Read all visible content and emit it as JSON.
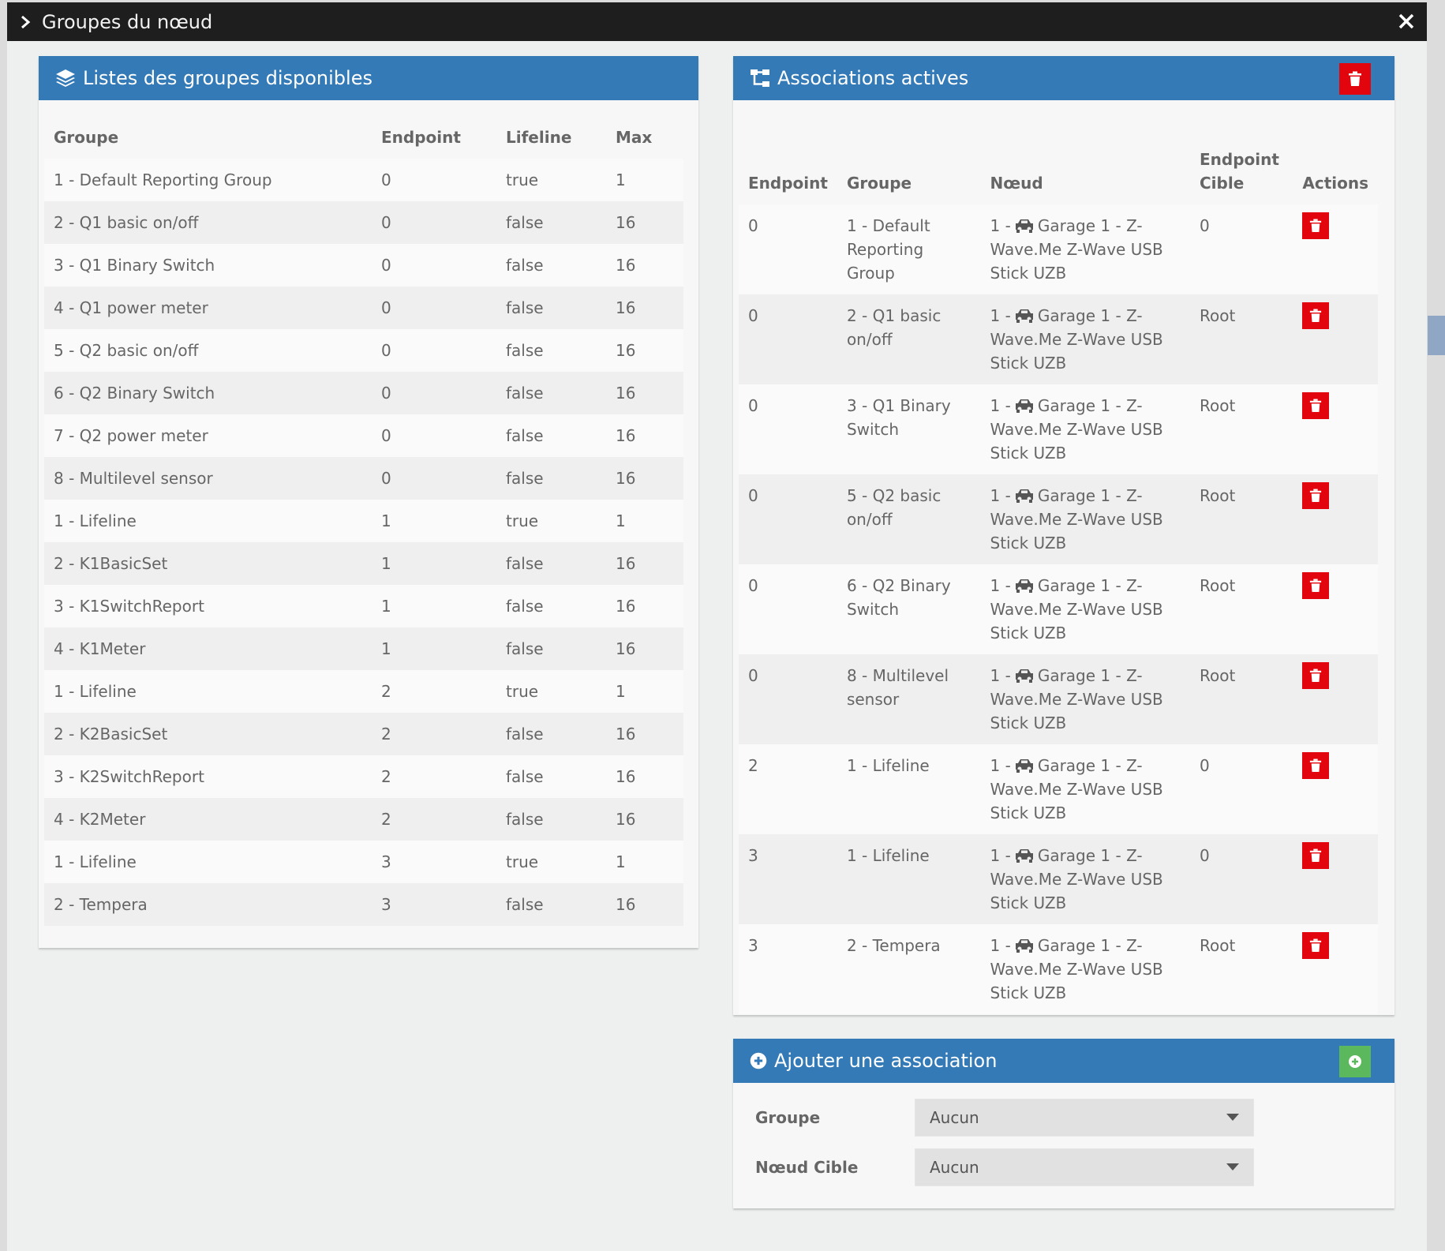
{
  "modal": {
    "title": "Groupes du nœud"
  },
  "groups_panel": {
    "title": "Listes des groupes disponibles",
    "columns": [
      "Groupe",
      "Endpoint",
      "Lifeline",
      "Max"
    ],
    "rows": [
      [
        "1 - Default Reporting Group",
        "0",
        "true",
        "1"
      ],
      [
        "2 - Q1 basic on/off",
        "0",
        "false",
        "16"
      ],
      [
        "3 - Q1 Binary Switch",
        "0",
        "false",
        "16"
      ],
      [
        "4 - Q1 power meter",
        "0",
        "false",
        "16"
      ],
      [
        "5 - Q2 basic on/off",
        "0",
        "false",
        "16"
      ],
      [
        "6 - Q2 Binary Switch",
        "0",
        "false",
        "16"
      ],
      [
        "7 - Q2 power meter",
        "0",
        "false",
        "16"
      ],
      [
        "8 - Multilevel sensor",
        "0",
        "false",
        "16"
      ],
      [
        "1 - Lifeline",
        "1",
        "true",
        "1"
      ],
      [
        "2 - K1BasicSet",
        "1",
        "false",
        "16"
      ],
      [
        "3 - K1SwitchReport",
        "1",
        "false",
        "16"
      ],
      [
        "4 - K1Meter",
        "1",
        "false",
        "16"
      ],
      [
        "1 - Lifeline",
        "2",
        "true",
        "1"
      ],
      [
        "2 - K2BasicSet",
        "2",
        "false",
        "16"
      ],
      [
        "3 - K2SwitchReport",
        "2",
        "false",
        "16"
      ],
      [
        "4 - K2Meter",
        "2",
        "false",
        "16"
      ],
      [
        "1 - Lifeline",
        "3",
        "true",
        "1"
      ],
      [
        "2 - Tempera",
        "3",
        "false",
        "16"
      ]
    ]
  },
  "associations_panel": {
    "title": "Associations actives",
    "columns": [
      "Endpoint",
      "Groupe",
      "Nœud",
      "Endpoint Cible",
      "Actions"
    ],
    "node_prefix": "1 -",
    "node_name": "Garage 1 - Z-Wave.Me Z-Wave USB Stick UZB",
    "rows": [
      {
        "endpoint": "0",
        "group": "1 - Default Reporting Group",
        "target": "0"
      },
      {
        "endpoint": "0",
        "group": "2 - Q1 basic on/off",
        "target": "Root"
      },
      {
        "endpoint": "0",
        "group": "3 - Q1 Binary Switch",
        "target": "Root"
      },
      {
        "endpoint": "0",
        "group": "5 - Q2 basic on/off",
        "target": "Root"
      },
      {
        "endpoint": "0",
        "group": "6 - Q2 Binary Switch",
        "target": "Root"
      },
      {
        "endpoint": "0",
        "group": "8 - Multilevel sensor",
        "target": "Root"
      },
      {
        "endpoint": "2",
        "group": "1 - Lifeline",
        "target": "0"
      },
      {
        "endpoint": "3",
        "group": "1 - Lifeline",
        "target": "0"
      },
      {
        "endpoint": "3",
        "group": "2 - Tempera",
        "target": "Root"
      }
    ]
  },
  "add_panel": {
    "title": "Ajouter une association",
    "group_label": "Groupe",
    "group_value": "Aucun",
    "target_label": "Nœud Cible",
    "target_value": "Aucun"
  },
  "colors": {
    "header_bg": "#1e1e1e",
    "panel_heading": "#337ab7",
    "danger": "#e3050d",
    "success": "#5cb85c"
  },
  "icons": [
    "chevron-right-icon",
    "close-icon",
    "layers-icon",
    "sitemap-icon",
    "trash-icon",
    "car-icon",
    "plus-circle-icon"
  ]
}
